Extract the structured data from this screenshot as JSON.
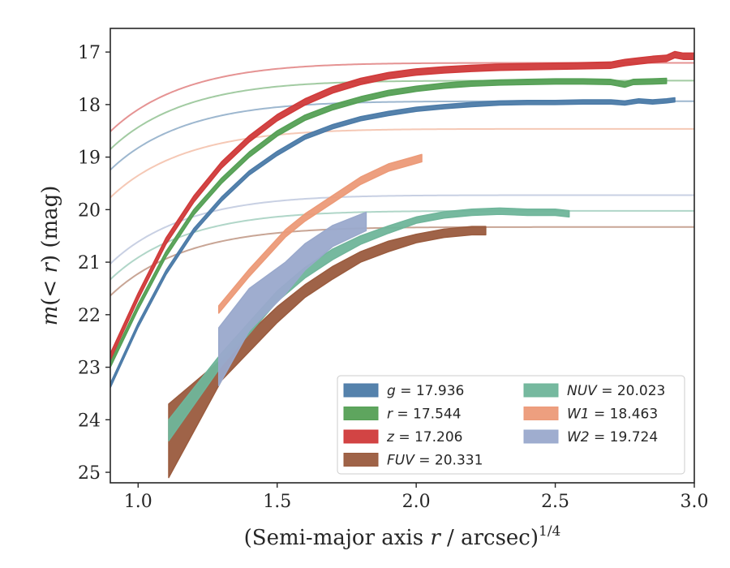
{
  "chart_data": {
    "type": "line",
    "title": "",
    "xlabel_main": "(Semi-major axis ",
    "xlabel_r": "r",
    "xlabel_tail": " / arcsec)",
    "xlabel_exp": "1/4",
    "ylabel_m": "m",
    "ylabel_paren_open": "(< ",
    "ylabel_r": "r",
    "ylabel_tail": ") (mag)",
    "xlim": [
      0.9,
      3.0
    ],
    "ylim": [
      25.2,
      16.55
    ],
    "y_inverted": true,
    "xticks": [
      {
        "value": 1.0,
        "label": "1.0"
      },
      {
        "value": 1.5,
        "label": "1.5"
      },
      {
        "value": 2.0,
        "label": "2.0"
      },
      {
        "value": 2.5,
        "label": "2.5"
      },
      {
        "value": 3.0,
        "label": "3.0"
      }
    ],
    "yticks": [
      {
        "value": 17,
        "label": "17"
      },
      {
        "value": 18,
        "label": "18"
      },
      {
        "value": 19,
        "label": "19"
      },
      {
        "value": 20,
        "label": "20"
      },
      {
        "value": 21,
        "label": "21"
      },
      {
        "value": 22,
        "label": "22"
      },
      {
        "value": 23,
        "label": "23"
      },
      {
        "value": 24,
        "label": "24"
      },
      {
        "value": 25,
        "label": "25"
      }
    ],
    "grid": false,
    "legend_position": "lower-right",
    "series": [
      {
        "name": "g",
        "label_var": "g",
        "label_value": " = 17.936",
        "color": "#4c7ba8",
        "model": {
          "m_total": 17.936,
          "a": 10.6,
          "p": 1.7
        },
        "data_x": [
          0.9,
          1.0,
          1.1,
          1.2,
          1.3,
          1.4,
          1.5,
          1.6,
          1.7,
          1.8,
          1.9,
          2.0,
          2.1,
          2.2,
          2.3,
          2.4,
          2.5,
          2.6,
          2.7,
          2.75,
          2.8,
          2.85,
          2.9,
          2.93
        ],
        "data_y": [
          23.35,
          22.2,
          21.2,
          20.4,
          19.8,
          19.3,
          18.93,
          18.62,
          18.42,
          18.27,
          18.17,
          18.09,
          18.04,
          18.0,
          17.97,
          17.96,
          17.96,
          17.95,
          17.95,
          17.97,
          17.93,
          17.95,
          17.93,
          17.91
        ],
        "band": 0.04
      },
      {
        "name": "r",
        "label_var": "r",
        "label_value": " = 17.544",
        "color": "#55a055",
        "model": {
          "m_total": 17.544,
          "a": 10.6,
          "p": 1.7
        },
        "data_x": [
          0.9,
          1.0,
          1.1,
          1.2,
          1.3,
          1.4,
          1.5,
          1.6,
          1.7,
          1.8,
          1.9,
          2.0,
          2.1,
          2.2,
          2.3,
          2.4,
          2.5,
          2.6,
          2.7,
          2.75,
          2.78,
          2.85,
          2.9
        ],
        "data_y": [
          22.95,
          21.85,
          20.85,
          20.05,
          19.45,
          18.95,
          18.55,
          18.25,
          18.05,
          17.9,
          17.78,
          17.7,
          17.64,
          17.6,
          17.58,
          17.57,
          17.56,
          17.56,
          17.57,
          17.62,
          17.57,
          17.56,
          17.55
        ],
        "band": 0.05
      },
      {
        "name": "z",
        "label_var": "z",
        "label_value": " = 17.206",
        "color": "#d03a3a",
        "model": {
          "m_total": 17.206,
          "a": 10.6,
          "p": 1.7
        },
        "data_x": [
          0.9,
          1.0,
          1.1,
          1.2,
          1.3,
          1.4,
          1.5,
          1.6,
          1.7,
          1.8,
          1.9,
          2.0,
          2.1,
          2.2,
          2.3,
          2.4,
          2.5,
          2.6,
          2.7,
          2.75,
          2.8,
          2.85,
          2.9,
          2.93,
          2.96,
          3.0
        ],
        "data_y": [
          22.8,
          21.65,
          20.6,
          19.8,
          19.15,
          18.65,
          18.25,
          17.95,
          17.72,
          17.56,
          17.45,
          17.38,
          17.34,
          17.31,
          17.29,
          17.28,
          17.27,
          17.26,
          17.25,
          17.2,
          17.17,
          17.14,
          17.12,
          17.05,
          17.08,
          17.08
        ],
        "band": 0.06
      },
      {
        "name": "FUV",
        "label_var": "FUV",
        "label_value": " = 20.331",
        "color": "#9a5b3e",
        "model": {
          "m_total": 20.331,
          "a": 10.6,
          "p": 1.7
        },
        "data_x": [
          1.11,
          1.3,
          1.5,
          1.6,
          1.7,
          1.8,
          1.9,
          2.0,
          2.1,
          2.2,
          2.25
        ],
        "data_y": [
          24.4,
          23.05,
          22.0,
          21.55,
          21.2,
          20.9,
          20.7,
          20.55,
          20.45,
          20.4,
          20.4
        ],
        "band_top": [
          0.7,
          0.2,
          0.15,
          0.12,
          0.12,
          0.1,
          0.1,
          0.08,
          0.08,
          0.08,
          0.08
        ],
        "band_bottom": [
          0.7,
          0.2,
          0.15,
          0.12,
          0.12,
          0.1,
          0.1,
          0.08,
          0.08,
          0.08,
          0.08
        ]
      },
      {
        "name": "NUV",
        "label_var": "NUV",
        "label_value": " = 20.023",
        "color": "#6fb59a",
        "model": {
          "m_total": 20.023,
          "a": 10.6,
          "p": 1.7
        },
        "data_x": [
          1.11,
          1.3,
          1.5,
          1.6,
          1.7,
          1.8,
          1.9,
          2.0,
          2.1,
          2.2,
          2.3,
          2.4,
          2.5,
          2.55
        ],
        "data_y": [
          24.2,
          22.85,
          21.65,
          21.2,
          20.85,
          20.58,
          20.38,
          20.2,
          20.1,
          20.05,
          20.03,
          20.05,
          20.05,
          20.08
        ],
        "band_top": [
          0.2,
          0.12,
          0.1,
          0.1,
          0.1,
          0.08,
          0.07,
          0.06,
          0.06,
          0.06,
          0.06,
          0.06,
          0.06,
          0.06
        ],
        "band_bottom": [
          0.2,
          0.12,
          0.1,
          0.1,
          0.1,
          0.08,
          0.07,
          0.06,
          0.06,
          0.06,
          0.06,
          0.06,
          0.06,
          0.06
        ]
      },
      {
        "name": "W1",
        "label_var": "W1",
        "label_value": " = 18.463",
        "color": "#ec9a78",
        "model": {
          "m_total": 18.463,
          "a": 10.6,
          "p": 1.7
        },
        "data_x": [
          1.29,
          1.4,
          1.53,
          1.6,
          1.7,
          1.8,
          1.9,
          2.02
        ],
        "data_y": [
          21.9,
          21.2,
          20.45,
          20.15,
          19.8,
          19.45,
          19.2,
          19.02
        ],
        "band": 0.07
      },
      {
        "name": "W2",
        "label_var": "W2",
        "label_value": " = 19.724",
        "color": "#9aa9cc",
        "model": {
          "m_total": 19.724,
          "a": 10.6,
          "p": 1.7
        },
        "data_x": [
          1.29,
          1.4,
          1.53,
          1.6,
          1.7,
          1.82
        ],
        "data_y": [
          22.8,
          21.8,
          21.1,
          20.75,
          20.4,
          20.1
        ],
        "band_top": [
          0.55,
          0.3,
          0.1,
          0.1,
          0.1,
          0.05
        ],
        "band_bottom": [
          0.55,
          0.5,
          0.5,
          0.4,
          0.3,
          0.3
        ]
      }
    ],
    "legend_columns": [
      [
        "g",
        "r",
        "z",
        "FUV"
      ],
      [
        "NUV",
        "W1",
        "W2"
      ]
    ]
  }
}
